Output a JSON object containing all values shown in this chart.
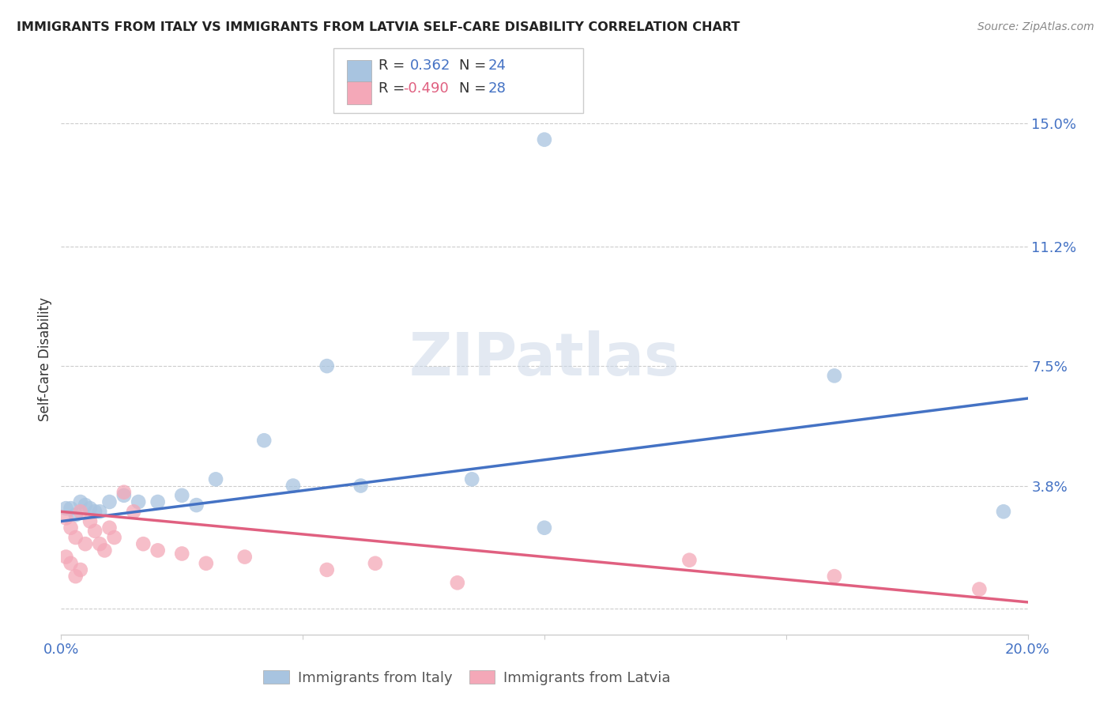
{
  "title": "IMMIGRANTS FROM ITALY VS IMMIGRANTS FROM LATVIA SELF-CARE DISABILITY CORRELATION CHART",
  "source": "Source: ZipAtlas.com",
  "ylabel": "Self-Care Disability",
  "xlim": [
    0.0,
    0.2
  ],
  "ylim": [
    -0.008,
    0.162
  ],
  "ytick_vals": [
    0.0,
    0.038,
    0.075,
    0.112,
    0.15
  ],
  "ytick_labels": [
    "",
    "3.8%",
    "7.5%",
    "11.2%",
    "15.0%"
  ],
  "xtick_vals": [
    0.0,
    0.05,
    0.1,
    0.15,
    0.2
  ],
  "xtick_labels": [
    "0.0%",
    "",
    "",
    "",
    "20.0%"
  ],
  "italy_color": "#a8c4e0",
  "latvia_color": "#f4a8b8",
  "italy_line_color": "#4472c4",
  "latvia_line_color": "#e06080",
  "italy_R": 0.362,
  "italy_N": 24,
  "latvia_R": -0.49,
  "latvia_N": 28,
  "watermark": "ZIPatlas",
  "italy_x": [
    0.001,
    0.002,
    0.003,
    0.004,
    0.005,
    0.006,
    0.007,
    0.008,
    0.01,
    0.013,
    0.016,
    0.02,
    0.025,
    0.028,
    0.032,
    0.042,
    0.048,
    0.062,
    0.085,
    0.1,
    0.195,
    0.055,
    0.1,
    0.16
  ],
  "italy_y": [
    0.031,
    0.031,
    0.029,
    0.033,
    0.032,
    0.031,
    0.03,
    0.03,
    0.033,
    0.035,
    0.033,
    0.033,
    0.035,
    0.032,
    0.04,
    0.052,
    0.038,
    0.038,
    0.04,
    0.025,
    0.03,
    0.075,
    0.145,
    0.072
  ],
  "latvia_x": [
    0.001,
    0.002,
    0.003,
    0.004,
    0.005,
    0.006,
    0.007,
    0.008,
    0.009,
    0.01,
    0.011,
    0.013,
    0.015,
    0.017,
    0.02,
    0.025,
    0.03,
    0.038,
    0.055,
    0.065,
    0.082,
    0.13,
    0.16,
    0.19,
    0.001,
    0.002,
    0.003,
    0.004
  ],
  "latvia_y": [
    0.028,
    0.025,
    0.022,
    0.03,
    0.02,
    0.027,
    0.024,
    0.02,
    0.018,
    0.025,
    0.022,
    0.036,
    0.03,
    0.02,
    0.018,
    0.017,
    0.014,
    0.016,
    0.012,
    0.014,
    0.008,
    0.015,
    0.01,
    0.006,
    0.016,
    0.014,
    0.01,
    0.012
  ],
  "italy_line_x0": 0.0,
  "italy_line_y0": 0.027,
  "italy_line_x1": 0.2,
  "italy_line_y1": 0.065,
  "latvia_line_x0": 0.0,
  "latvia_line_y0": 0.03,
  "latvia_line_x1": 0.2,
  "latvia_line_y1": 0.002
}
